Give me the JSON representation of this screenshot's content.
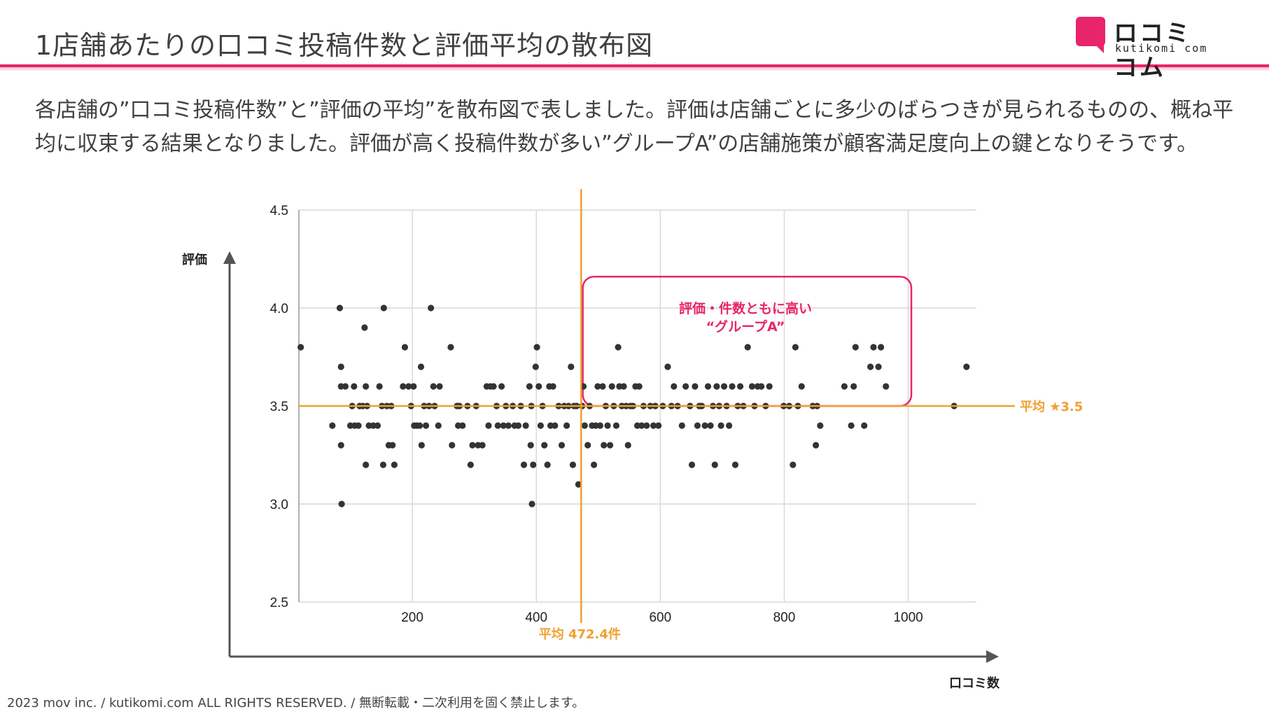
{
  "page": {
    "title": "1店舗あたりの口コミ投稿件数と評価平均の散布図",
    "description": "各店舗の”口コミ投稿件数”と”評価の平均”を散布図で表しました。評価は店舗ごとに多少のばらつきが見られるものの、概ね平均に収束する結果となりました。評価が高く投稿件数が多い”グループA”の店舗施策が顧客満足度向上の鍵となりそうです。",
    "footer": "2023 mov inc. / kutikomi.com ALL RIGHTS RESERVED. / 無断転載・二次利用を固く禁止します。"
  },
  "logo": {
    "text": "ロコミコム",
    "sub": "kutikomi com"
  },
  "colors": {
    "accent": "#e8246a",
    "mean_line": "#f0a030",
    "points": "#333333",
    "grid": "#d9d9d9",
    "axis": "#555555"
  },
  "chart_data": {
    "type": "scatter",
    "title": "1店舗あたりの口コミ投稿件数と評価平均の散布図",
    "xlabel": "口コミ数",
    "ylabel": "評価",
    "xlim": [
      17,
      1110
    ],
    "ylim": [
      2.5,
      4.5
    ],
    "xticks": [
      200,
      400,
      600,
      800,
      1000
    ],
    "yticks": [
      2.5,
      3.0,
      3.5,
      4.0,
      4.5
    ],
    "ytick_labels": [
      "2.5",
      "3.0",
      "3.5",
      "4.0",
      "4.5"
    ],
    "grid": true,
    "mean_x": {
      "value": 472.4,
      "label": "平均 472.4件"
    },
    "mean_y": {
      "value": 3.5,
      "label": "平均 ★3.5"
    },
    "highlight_group": {
      "label_line1": "評価・件数ともに高い",
      "label_line2": "“グループA”",
      "x_range": [
        475,
        1005
      ],
      "y_range": [
        3.5,
        4.16
      ]
    },
    "points": [
      [
        20,
        3.8
      ],
      [
        71,
        3.4
      ],
      [
        83,
        4.0
      ],
      [
        85,
        3.7
      ],
      [
        85,
        3.6
      ],
      [
        85,
        3.3
      ],
      [
        86,
        3.0
      ],
      [
        92,
        3.6
      ],
      [
        100,
        3.4
      ],
      [
        103,
        3.5
      ],
      [
        106,
        3.6
      ],
      [
        107,
        3.4
      ],
      [
        113,
        3.4
      ],
      [
        115,
        3.5
      ],
      [
        120,
        3.5
      ],
      [
        123,
        3.9
      ],
      [
        125,
        3.6
      ],
      [
        125,
        3.2
      ],
      [
        127,
        3.5
      ],
      [
        130,
        3.4
      ],
      [
        137,
        3.4
      ],
      [
        144,
        3.4
      ],
      [
        147,
        3.6
      ],
      [
        151,
        3.5
      ],
      [
        154,
        4.0
      ],
      [
        153,
        3.2
      ],
      [
        159,
        3.5
      ],
      [
        162,
        3.3
      ],
      [
        166,
        3.5
      ],
      [
        168,
        3.3
      ],
      [
        171,
        3.2
      ],
      [
        185,
        3.6
      ],
      [
        188,
        3.8
      ],
      [
        194,
        3.6
      ],
      [
        198,
        3.5
      ],
      [
        202,
        3.6
      ],
      [
        203,
        3.4
      ],
      [
        207,
        3.4
      ],
      [
        212,
        3.4
      ],
      [
        214,
        3.7
      ],
      [
        215,
        3.3
      ],
      [
        219,
        3.5
      ],
      [
        222,
        3.4
      ],
      [
        227,
        3.5
      ],
      [
        230,
        4.0
      ],
      [
        234,
        3.6
      ],
      [
        236,
        3.5
      ],
      [
        242,
        3.4
      ],
      [
        244,
        3.6
      ],
      [
        262,
        3.8
      ],
      [
        264,
        3.3
      ],
      [
        272,
        3.5
      ],
      [
        274,
        3.4
      ],
      [
        276,
        3.5
      ],
      [
        281,
        3.4
      ],
      [
        289,
        3.5
      ],
      [
        294,
        3.2
      ],
      [
        297,
        3.3
      ],
      [
        303,
        3.5
      ],
      [
        306,
        3.3
      ],
      [
        313,
        3.3
      ],
      [
        320,
        3.6
      ],
      [
        323,
        3.4
      ],
      [
        326,
        3.6
      ],
      [
        331,
        3.6
      ],
      [
        336,
        3.5
      ],
      [
        338,
        3.4
      ],
      [
        344,
        3.6
      ],
      [
        347,
        3.4
      ],
      [
        351,
        3.5
      ],
      [
        355,
        3.4
      ],
      [
        362,
        3.5
      ],
      [
        365,
        3.4
      ],
      [
        371,
        3.4
      ],
      [
        375,
        3.5
      ],
      [
        380,
        3.2
      ],
      [
        383,
        3.4
      ],
      [
        389,
        3.6
      ],
      [
        391,
        3.3
      ],
      [
        392,
        3.5
      ],
      [
        395,
        3.2
      ],
      [
        393,
        3.0
      ],
      [
        401,
        3.8
      ],
      [
        399,
        3.7
      ],
      [
        404,
        3.6
      ],
      [
        407,
        3.4
      ],
      [
        410,
        3.5
      ],
      [
        413,
        3.3
      ],
      [
        418,
        3.2
      ],
      [
        421,
        3.6
      ],
      [
        423,
        3.4
      ],
      [
        427,
        3.6
      ],
      [
        430,
        3.4
      ],
      [
        436,
        3.5
      ],
      [
        441,
        3.3
      ],
      [
        445,
        3.5
      ],
      [
        449,
        3.4
      ],
      [
        452,
        3.5
      ],
      [
        456,
        3.7
      ],
      [
        459,
        3.2
      ],
      [
        461,
        3.5
      ],
      [
        465,
        3.5
      ],
      [
        468,
        3.1
      ],
      [
        474,
        3.5
      ],
      [
        476,
        3.6
      ],
      [
        478,
        3.4
      ],
      [
        483,
        3.3
      ],
      [
        486,
        3.5
      ],
      [
        490,
        3.4
      ],
      [
        493,
        3.2
      ],
      [
        496,
        3.4
      ],
      [
        499,
        3.6
      ],
      [
        503,
        3.4
      ],
      [
        507,
        3.6
      ],
      [
        509,
        3.3
      ],
      [
        512,
        3.5
      ],
      [
        515,
        3.4
      ],
      [
        519,
        3.3
      ],
      [
        522,
        3.6
      ],
      [
        525,
        3.5
      ],
      [
        529,
        3.4
      ],
      [
        532,
        3.8
      ],
      [
        534,
        3.6
      ],
      [
        538,
        3.5
      ],
      [
        541,
        3.6
      ],
      [
        545,
        3.5
      ],
      [
        548,
        3.3
      ],
      [
        552,
        3.5
      ],
      [
        556,
        3.5
      ],
      [
        560,
        3.6
      ],
      [
        563,
        3.4
      ],
      [
        566,
        3.6
      ],
      [
        570,
        3.4
      ],
      [
        573,
        3.5
      ],
      [
        578,
        3.4
      ],
      [
        584,
        3.5
      ],
      [
        589,
        3.4
      ],
      [
        592,
        3.5
      ],
      [
        597,
        3.4
      ],
      [
        604,
        3.5
      ],
      [
        612,
        3.7
      ],
      [
        618,
        3.5
      ],
      [
        622,
        3.6
      ],
      [
        628,
        3.5
      ],
      [
        635,
        3.4
      ],
      [
        641,
        3.6
      ],
      [
        648,
        3.5
      ],
      [
        651,
        3.2
      ],
      [
        656,
        3.6
      ],
      [
        660,
        3.4
      ],
      [
        663,
        3.5
      ],
      [
        667,
        3.5
      ],
      [
        672,
        3.4
      ],
      [
        677,
        3.6
      ],
      [
        681,
        3.4
      ],
      [
        685,
        3.5
      ],
      [
        688,
        3.2
      ],
      [
        691,
        3.6
      ],
      [
        695,
        3.5
      ],
      [
        698,
        3.4
      ],
      [
        703,
        3.6
      ],
      [
        707,
        3.5
      ],
      [
        711,
        3.4
      ],
      [
        716,
        3.6
      ],
      [
        721,
        3.2
      ],
      [
        725,
        3.5
      ],
      [
        729,
        3.6
      ],
      [
        734,
        3.5
      ],
      [
        741,
        3.8
      ],
      [
        748,
        3.6
      ],
      [
        752,
        3.5
      ],
      [
        757,
        3.6
      ],
      [
        763,
        3.6
      ],
      [
        770,
        3.5
      ],
      [
        776,
        3.6
      ],
      [
        799,
        3.5
      ],
      [
        808,
        3.5
      ],
      [
        814,
        3.2
      ],
      [
        818,
        3.8
      ],
      [
        822,
        3.5
      ],
      [
        828,
        3.6
      ],
      [
        846,
        3.5
      ],
      [
        851,
        3.3
      ],
      [
        853,
        3.5
      ],
      [
        858,
        3.4
      ],
      [
        897,
        3.6
      ],
      [
        908,
        3.4
      ],
      [
        912,
        3.6
      ],
      [
        915,
        3.8
      ],
      [
        929,
        3.4
      ],
      [
        939,
        3.7
      ],
      [
        944,
        3.8
      ],
      [
        952,
        3.7
      ],
      [
        956,
        3.8
      ],
      [
        964,
        3.6
      ],
      [
        1074,
        3.5
      ],
      [
        1094,
        3.7
      ]
    ]
  }
}
